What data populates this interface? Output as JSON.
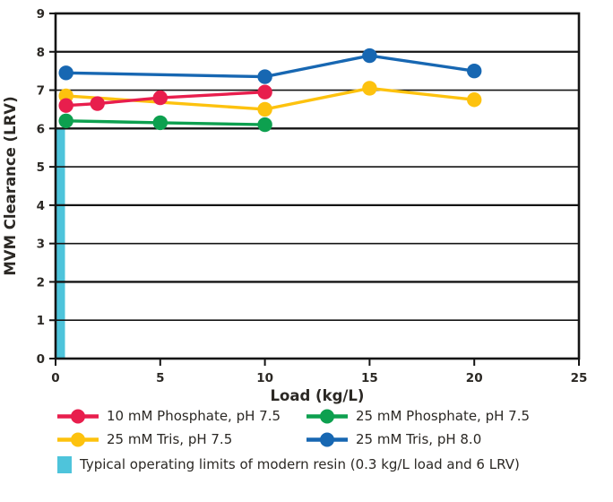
{
  "chart_data": {
    "type": "line",
    "title": "",
    "xlabel": "Load (kg/L)",
    "ylabel": "MVM Clearance (LRV)",
    "xlim": [
      0,
      25
    ],
    "ylim": [
      0,
      9
    ],
    "xticks": [
      0,
      5,
      10,
      15,
      20,
      25
    ],
    "yticks": [
      0,
      1,
      2,
      3,
      4,
      5,
      6,
      7,
      8,
      9
    ],
    "grid": "horizontal",
    "legend_position": "bottom",
    "colors": {
      "axis_line": "#141414",
      "tick_text": "#2b2824"
    },
    "series": [
      {
        "name": "10 mM Phosphate, pH 7.5",
        "color": "#e81e4d",
        "points": [
          [
            0.5,
            6.6
          ],
          [
            2,
            6.65
          ],
          [
            5,
            6.8
          ],
          [
            10,
            6.95
          ]
        ]
      },
      {
        "name": "25 mM Phosphate, pH 7.5",
        "color": "#0da04f",
        "points": [
          [
            0.5,
            6.2
          ],
          [
            5,
            6.15
          ],
          [
            10,
            6.1
          ]
        ]
      },
      {
        "name": "25 mM Tris, pH 7.5",
        "color": "#fdc20e",
        "points": [
          [
            0.5,
            6.85
          ],
          [
            10,
            6.5
          ],
          [
            15,
            7.05
          ],
          [
            20,
            6.75
          ]
        ]
      },
      {
        "name": "25 mM Tris, pH 8.0",
        "color": "#1767b2",
        "points": [
          [
            0.5,
            7.45
          ],
          [
            10,
            7.35
          ],
          [
            15,
            7.9
          ],
          [
            20,
            7.5
          ]
        ]
      }
    ],
    "reference_bar": {
      "label": "Typical operating limits of modern resin (0.3 kg/L load and 6 LRV)",
      "color": "#4ec4db",
      "x_range": [
        0,
        0.45
      ],
      "y_value": 6
    }
  }
}
